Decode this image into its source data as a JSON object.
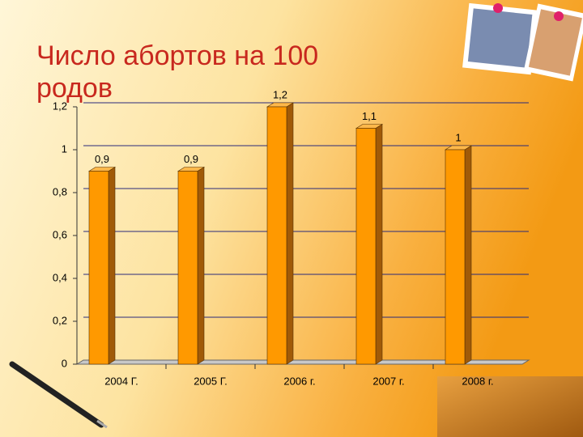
{
  "chart_data": {
    "type": "bar",
    "title": "Число абортов на 100 родов",
    "categories": [
      "2004 Г.",
      "2005 Г.",
      "2006 г.",
      "2007 г.",
      "2008 г."
    ],
    "values": [
      0.9,
      0.9,
      1.2,
      1.1,
      1
    ],
    "value_labels": [
      "0,9",
      "0,9",
      "1,2",
      "1,1",
      "1"
    ],
    "color": "#ff9900",
    "ylim": [
      0,
      1.2
    ],
    "yticks": [
      0,
      {
        "value": 0.2,
        "label": "0,2"
      },
      {
        "value": 0.4,
        "label": "0,4"
      },
      {
        "value": 0.6,
        "label": "0,6"
      },
      {
        "value": 0.8,
        "label": "0,8"
      },
      1,
      {
        "value": 1.2,
        "label": "1,2"
      }
    ],
    "grid": true
  }
}
